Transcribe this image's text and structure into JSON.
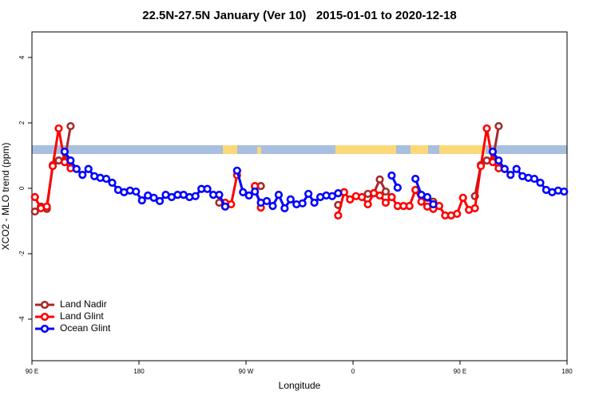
{
  "chart_data": {
    "type": "line",
    "title": "22.5N-27.5N January (Ver 10)   2015-01-01 to 2020-12-18",
    "xlabel": "Longitude",
    "ylabel": "XCO2 - MLO trend (ppm)",
    "xlim": [
      90,
      540
    ],
    "ylim": [
      -5.27,
      4.78
    ],
    "xticks": [
      {
        "value": 90,
        "label": "90 E"
      },
      180,
      {
        "value": 270,
        "label": "90 W"
      },
      {
        "value": 360,
        "label": "0"
      },
      {
        "value": 450,
        "label": "90 E"
      },
      {
        "value": 540,
        "label": "180"
      }
    ],
    "yticks": [
      -4,
      -2,
      0,
      2,
      4
    ],
    "legend": "bottom-left",
    "series": [
      {
        "name": "Land Nadir",
        "color": "#a52a2a",
        "x": [
          92.5,
          97.5,
          102.5,
          107.5,
          112.5,
          117.5,
          122.5,
          127.5,
          247.5,
          252.5,
          257.5,
          277.5,
          282.5,
          287.5,
          347.5,
          352.5,
          372.5,
          377.5,
          382.5,
          387.5,
          392.5,
          397.5,
          422.5,
          427.5,
          432.5,
          462.5,
          467.5,
          472.5,
          477.5,
          482.5
        ],
        "values": [
          -0.71,
          -0.56,
          -0.63,
          0.71,
          0.85,
          0.85,
          1.9,
          null,
          -0.44,
          -0.49,
          null,
          0.05,
          0.07,
          null,
          -0.51,
          null,
          -0.17,
          -0.15,
          0.27,
          -0.1,
          -0.27,
          null,
          -0.29,
          -0.41,
          null,
          -0.24,
          0.71,
          0.85,
          0.85,
          1.9
        ]
      },
      {
        "name": "Land Glint",
        "color": "#ff0000",
        "x": [
          92.5,
          97.5,
          102.5,
          107.5,
          112.5,
          117.5,
          122.5,
          127.5,
          252.5,
          257.5,
          262.5,
          267.5,
          277.5,
          282.5,
          287.5,
          347.5,
          352.5,
          357.5,
          362.5,
          367.5,
          372.5,
          377.5,
          382.5,
          387.5,
          392.5,
          397.5,
          402.5,
          407.5,
          412.5,
          417.5,
          422.5,
          427.5,
          432.5,
          437.5,
          442.5,
          447.5,
          452.5,
          457.5,
          462.5,
          467.5,
          472.5,
          477.5,
          482.5
        ],
        "values": [
          -0.27,
          -0.61,
          -0.56,
          0.68,
          1.83,
          0.8,
          0.61,
          null,
          -0.44,
          -0.49,
          0.4,
          null,
          0.07,
          -0.59,
          null,
          -0.83,
          -0.12,
          -0.34,
          -0.24,
          -0.27,
          -0.49,
          -0.15,
          -0.22,
          -0.44,
          -0.27,
          -0.54,
          -0.54,
          -0.54,
          -0.05,
          -0.41,
          -0.56,
          -0.63,
          -0.54,
          -0.83,
          -0.83,
          -0.78,
          -0.29,
          -0.66,
          -0.61,
          0.68,
          1.83,
          0.8,
          0.61
        ]
      },
      {
        "name": "Ocean Glint",
        "color": "#0000ff",
        "x": [
          117.5,
          122.5,
          127.5,
          132.5,
          137.5,
          142.5,
          147.5,
          152.5,
          157.5,
          162.5,
          167.5,
          172.5,
          177.5,
          182.5,
          187.5,
          192.5,
          197.5,
          202.5,
          207.5,
          212.5,
          217.5,
          222.5,
          227.5,
          232.5,
          237.5,
          242.5,
          247.5,
          252.5,
          257.5,
          262.5,
          267.5,
          272.5,
          277.5,
          282.5,
          287.5,
          292.5,
          297.5,
          302.5,
          307.5,
          312.5,
          317.5,
          322.5,
          327.5,
          332.5,
          337.5,
          342.5,
          347.5,
          352.5,
          392.5,
          397.5,
          402.5,
          412.5,
          417.5,
          422.5,
          427.5,
          432.5,
          477.5,
          482.5,
          487.5,
          492.5,
          497.5,
          502.5,
          507.5,
          512.5,
          517.5,
          522.5,
          527.5,
          532.5,
          537.5
        ],
        "values": [
          1.12,
          0.85,
          0.59,
          0.41,
          0.59,
          0.37,
          0.32,
          0.29,
          0.17,
          -0.05,
          -0.12,
          -0.07,
          -0.1,
          -0.37,
          -0.22,
          -0.29,
          -0.39,
          -0.2,
          -0.27,
          -0.2,
          -0.2,
          -0.27,
          -0.24,
          -0.02,
          -0.02,
          -0.2,
          -0.2,
          -0.56,
          null,
          0.54,
          -0.12,
          -0.22,
          -0.1,
          -0.44,
          -0.39,
          -0.54,
          -0.2,
          -0.61,
          -0.34,
          -0.49,
          -0.46,
          -0.17,
          -0.44,
          -0.27,
          -0.22,
          -0.24,
          -0.15,
          null,
          0.39,
          0.02,
          null,
          0.29,
          -0.2,
          -0.27,
          -0.49,
          null,
          1.12,
          0.85,
          0.59,
          0.41,
          0.59,
          0.37,
          0.32,
          0.29,
          0.17,
          -0.05,
          -0.12,
          -0.07,
          -0.1
        ]
      }
    ]
  }
}
